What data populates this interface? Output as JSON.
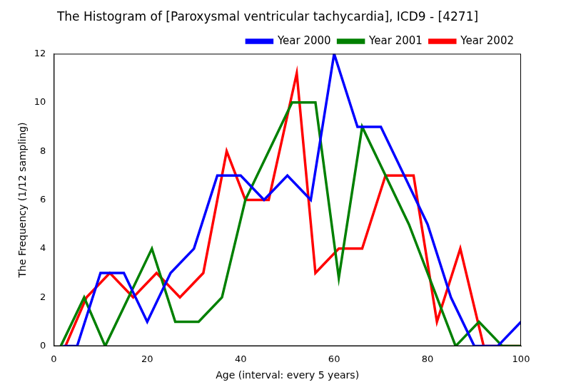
{
  "chart_data": {
    "type": "line",
    "title": "The Histogram of [Paroxysmal ventricular tachycardia], ICD9 - [4271]",
    "x_label": "Age (interval: every 5 years)",
    "y_label": "The Frequency (1/12 sampling)",
    "series": [
      {
        "name": "Year 2000",
        "color": "#0000ff",
        "x": [
          2,
          5,
          10,
          15,
          20,
          25,
          30,
          35,
          40,
          45,
          50,
          55,
          60,
          65,
          70,
          75,
          80,
          85,
          90,
          95,
          100
        ],
        "values": [
          0,
          0,
          3,
          3,
          1,
          3,
          4,
          7,
          7,
          6,
          7,
          6,
          12,
          9,
          9,
          7,
          5,
          2,
          0,
          0,
          1
        ]
      },
      {
        "name": "Year 2001",
        "color": "#008000",
        "x": [
          1.5,
          6.5,
          11,
          16,
          21,
          26,
          31,
          36,
          41,
          46,
          51,
          56,
          61,
          66,
          71,
          76,
          81,
          86,
          91,
          96,
          100
        ],
        "values": [
          0,
          2,
          0,
          2,
          4,
          1,
          1,
          2,
          6,
          8,
          10,
          10,
          2.8,
          9,
          7,
          5,
          2.5,
          0,
          1,
          0,
          0
        ]
      },
      {
        "name": "Year 2002",
        "color": "#ff0000",
        "x": [
          2.5,
          7,
          12,
          17,
          22,
          27,
          32,
          37,
          41,
          46,
          52,
          56,
          61,
          66,
          71,
          77,
          82,
          87,
          92,
          100
        ],
        "values": [
          0,
          2,
          3,
          2,
          3,
          2,
          3,
          8,
          6,
          6,
          11.2,
          3,
          4,
          4,
          7,
          7,
          1,
          4,
          0,
          0
        ]
      }
    ],
    "xlim": [
      0,
      100
    ],
    "xticks": [
      0,
      20,
      40,
      60,
      80,
      100
    ],
    "ylim": [
      0,
      12
    ],
    "yticks": [
      0,
      2,
      4,
      6,
      8,
      10,
      12
    ],
    "grid": false,
    "legend": "upper right"
  }
}
